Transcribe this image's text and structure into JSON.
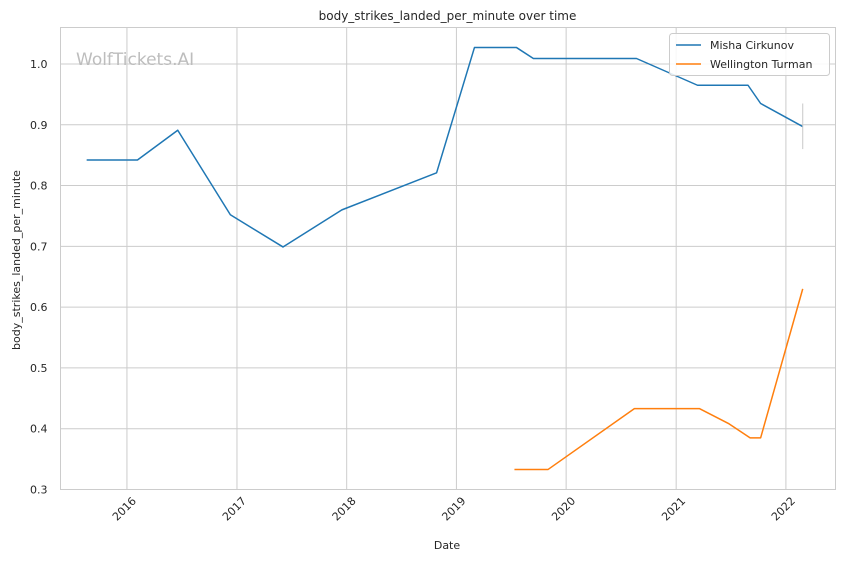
{
  "chart_data": {
    "type": "line",
    "title": "body_strikes_landed_per_minute over time",
    "xlabel": "Date",
    "ylabel": "body_strikes_landed_per_minute",
    "watermark": "WolfTickets.AI",
    "x_ticks": [
      "2016",
      "2017",
      "2018",
      "2019",
      "2020",
      "2021",
      "2022"
    ],
    "y_ticks": [
      "0.3",
      "0.4",
      "0.5",
      "0.6",
      "0.7",
      "0.8",
      "0.9",
      "1.0"
    ],
    "xlim": [
      "2015-05-25",
      "2022-06-15"
    ],
    "ylim": [
      0.3,
      1.06
    ],
    "grid": true,
    "legend_position": "top-right",
    "series": [
      {
        "name": "Misha Cirkunov",
        "color": "#1f77b4",
        "points": [
          [
            "2015-08-20",
            0.842
          ],
          [
            "2016-02-05",
            0.842
          ],
          [
            "2016-06-18",
            0.891
          ],
          [
            "2016-12-10",
            0.752
          ],
          [
            "2017-06-03",
            0.699
          ],
          [
            "2017-12-16",
            0.76
          ],
          [
            "2018-10-27",
            0.821
          ],
          [
            "2019-03-02",
            1.027
          ],
          [
            "2019-07-20",
            1.027
          ],
          [
            "2019-09-14",
            1.009
          ],
          [
            "2020-08-22",
            1.009
          ],
          [
            "2021-03-13",
            0.965
          ],
          [
            "2021-08-28",
            0.965
          ],
          [
            "2021-10-09",
            0.935
          ],
          [
            "2022-02-26",
            0.897
          ]
        ]
      },
      {
        "name": "Wellington Turman",
        "color": "#ff7f0e",
        "points": [
          [
            "2019-07-13",
            0.333
          ],
          [
            "2019-11-02",
            0.333
          ],
          [
            "2020-08-15",
            0.433
          ],
          [
            "2021-03-20",
            0.433
          ],
          [
            "2021-06-26",
            0.408
          ],
          [
            "2021-09-04",
            0.385
          ],
          [
            "2021-10-09",
            0.385
          ],
          [
            "2022-02-26",
            0.63
          ]
        ]
      }
    ],
    "errorbar": {
      "date": "2022-02-26",
      "low": 0.86,
      "high": 0.935,
      "color": "#c8c8c8"
    }
  }
}
